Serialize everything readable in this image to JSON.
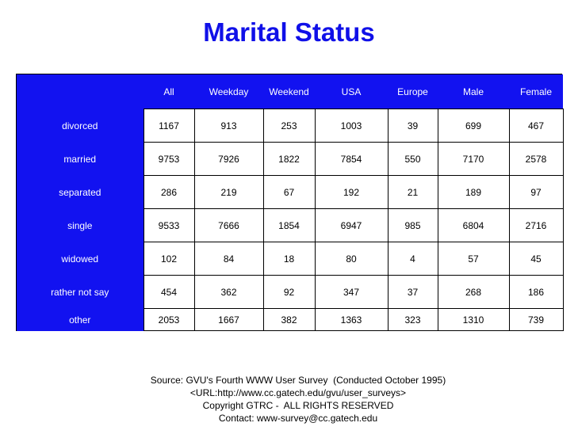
{
  "title": "Marital Status",
  "chart_data": {
    "type": "table",
    "title": "Marital Status",
    "columns": [
      "All",
      "Weekday",
      "Weekend",
      "USA",
      "Europe",
      "Male",
      "Female"
    ],
    "rows": [
      {
        "label": "divorced",
        "values": [
          "1167",
          "913",
          "253",
          "1003",
          "39",
          "699",
          "467"
        ]
      },
      {
        "label": "married",
        "values": [
          "9753",
          "7926",
          "1822",
          "7854",
          "550",
          "7170",
          "2578"
        ]
      },
      {
        "label": "separated",
        "values": [
          "286",
          "219",
          "67",
          "192",
          "21",
          "189",
          "97"
        ]
      },
      {
        "label": "single",
        "values": [
          "9533",
          "7666",
          "1854",
          "6947",
          "985",
          "6804",
          "2716"
        ]
      },
      {
        "label": "widowed",
        "values": [
          "102",
          "84",
          "18",
          "80",
          "4",
          "57",
          "45"
        ]
      },
      {
        "label": "rather not say",
        "values": [
          "454",
          "362",
          "92",
          "347",
          "37",
          "268",
          "186"
        ]
      },
      {
        "label": "other",
        "values": [
          "2053",
          "1667",
          "382",
          "1363",
          "323",
          "1310",
          "739"
        ]
      }
    ]
  },
  "footer": {
    "source": "Source: GVU's Fourth WWW User Survey  (Conducted October 1995)",
    "url": "<URL:http://www.cc.gatech.edu/gvu/user_surveys>",
    "copyright": "Copyright GTRC -  ALL RIGHTS RESERVED",
    "contact": "Contact: www-survey@cc.gatech.edu"
  },
  "colors": {
    "title": "#1010e8",
    "header_fill": "#1212f0",
    "cell_fill": "#ffffff"
  }
}
